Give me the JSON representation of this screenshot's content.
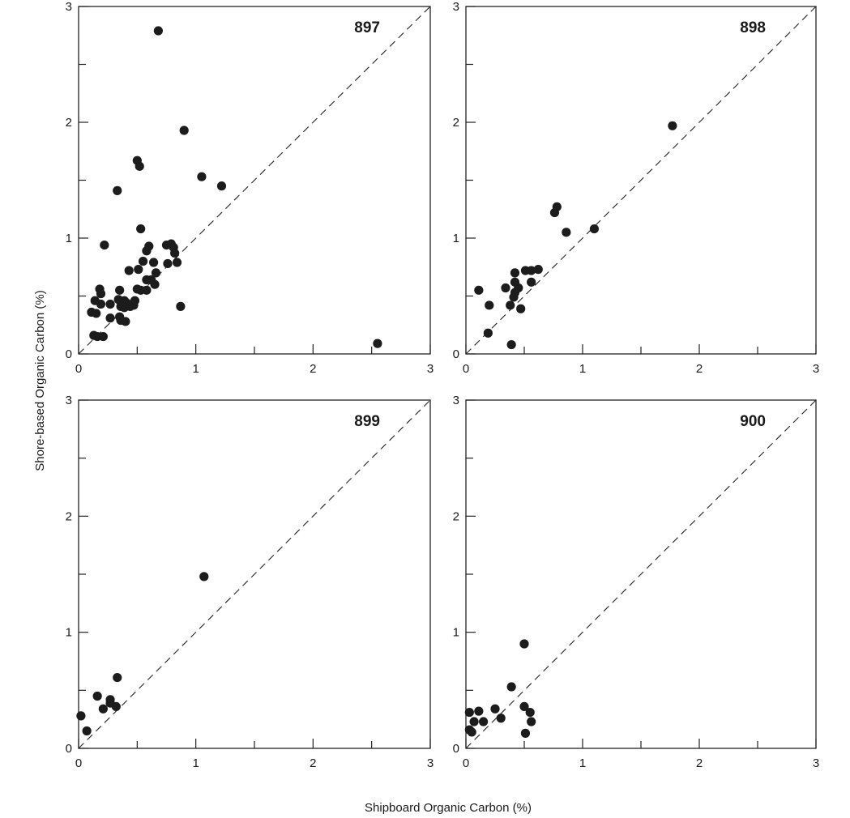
{
  "figure": {
    "xlabel": "Shipboard Organic Carbon (%)",
    "ylabel": "Shore-based Organic Carbon (%)"
  },
  "chart_data": [
    {
      "type": "scatter",
      "panel_label": "897",
      "xlim": [
        0,
        3
      ],
      "ylim": [
        0,
        3
      ],
      "x_ticks": [
        "0",
        "1",
        "2",
        "3"
      ],
      "y_ticks": [
        "0",
        "1",
        "2",
        "3"
      ],
      "reference_line": "1:1 dashed",
      "points": [
        [
          0.68,
          2.79
        ],
        [
          0.9,
          1.93
        ],
        [
          0.5,
          1.67
        ],
        [
          0.52,
          1.62
        ],
        [
          1.05,
          1.53
        ],
        [
          1.22,
          1.45
        ],
        [
          0.33,
          1.41
        ],
        [
          0.53,
          1.08
        ],
        [
          0.22,
          0.94
        ],
        [
          0.6,
          0.93
        ],
        [
          0.75,
          0.94
        ],
        [
          0.79,
          0.95
        ],
        [
          0.81,
          0.92
        ],
        [
          0.58,
          0.89
        ],
        [
          0.82,
          0.87
        ],
        [
          0.55,
          0.8
        ],
        [
          0.64,
          0.79
        ],
        [
          0.84,
          0.79
        ],
        [
          0.76,
          0.78
        ],
        [
          0.51,
          0.73
        ],
        [
          0.43,
          0.72
        ],
        [
          0.66,
          0.7
        ],
        [
          0.58,
          0.64
        ],
        [
          0.62,
          0.64
        ],
        [
          0.65,
          0.6
        ],
        [
          0.5,
          0.56
        ],
        [
          0.53,
          0.55
        ],
        [
          0.58,
          0.55
        ],
        [
          0.35,
          0.55
        ],
        [
          0.18,
          0.56
        ],
        [
          0.19,
          0.52
        ],
        [
          0.34,
          0.47
        ],
        [
          0.39,
          0.46
        ],
        [
          0.41,
          0.44
        ],
        [
          0.48,
          0.46
        ],
        [
          0.14,
          0.46
        ],
        [
          0.19,
          0.43
        ],
        [
          0.27,
          0.43
        ],
        [
          0.36,
          0.41
        ],
        [
          0.39,
          0.4
        ],
        [
          0.47,
          0.42
        ],
        [
          0.44,
          0.41
        ],
        [
          0.11,
          0.36
        ],
        [
          0.15,
          0.35
        ],
        [
          0.35,
          0.32
        ],
        [
          0.27,
          0.31
        ],
        [
          0.36,
          0.29
        ],
        [
          0.4,
          0.28
        ],
        [
          0.87,
          0.41
        ],
        [
          0.13,
          0.16
        ],
        [
          0.16,
          0.15
        ],
        [
          0.21,
          0.15
        ],
        [
          2.55,
          0.09
        ]
      ]
    },
    {
      "type": "scatter",
      "panel_label": "898",
      "xlim": [
        0,
        3
      ],
      "ylim": [
        0,
        3
      ],
      "x_ticks": [
        "0",
        "1",
        "2",
        "3"
      ],
      "y_ticks": [
        "0",
        "1",
        "2",
        "3"
      ],
      "reference_line": "1:1 dashed",
      "points": [
        [
          1.77,
          1.97
        ],
        [
          0.78,
          1.27
        ],
        [
          0.76,
          1.22
        ],
        [
          1.1,
          1.08
        ],
        [
          0.86,
          1.05
        ],
        [
          0.62,
          0.73
        ],
        [
          0.51,
          0.72
        ],
        [
          0.56,
          0.72
        ],
        [
          0.42,
          0.7
        ],
        [
          0.42,
          0.62
        ],
        [
          0.56,
          0.62
        ],
        [
          0.45,
          0.57
        ],
        [
          0.34,
          0.57
        ],
        [
          0.42,
          0.53
        ],
        [
          0.11,
          0.55
        ],
        [
          0.41,
          0.49
        ],
        [
          0.2,
          0.42
        ],
        [
          0.38,
          0.42
        ],
        [
          0.47,
          0.39
        ],
        [
          0.19,
          0.18
        ],
        [
          0.39,
          0.08
        ]
      ]
    },
    {
      "type": "scatter",
      "panel_label": "899",
      "xlim": [
        0,
        3
      ],
      "ylim": [
        0,
        3
      ],
      "x_ticks": [
        "0",
        "1",
        "2",
        "3"
      ],
      "y_ticks": [
        "0",
        "1",
        "2",
        "3"
      ],
      "reference_line": "1:1 dashed",
      "points": [
        [
          1.07,
          1.48
        ],
        [
          0.33,
          0.61
        ],
        [
          0.16,
          0.45
        ],
        [
          0.27,
          0.42
        ],
        [
          0.27,
          0.39
        ],
        [
          0.21,
          0.34
        ],
        [
          0.32,
          0.36
        ],
        [
          0.02,
          0.28
        ],
        [
          0.07,
          0.15
        ]
      ]
    },
    {
      "type": "scatter",
      "panel_label": "900",
      "xlim": [
        0,
        3
      ],
      "ylim": [
        0,
        3
      ],
      "x_ticks": [
        "0",
        "1",
        "2",
        "3"
      ],
      "y_ticks": [
        "0",
        "1",
        "2",
        "3"
      ],
      "reference_line": "1:1 dashed",
      "points": [
        [
          0.5,
          0.9
        ],
        [
          0.39,
          0.53
        ],
        [
          0.5,
          0.36
        ],
        [
          0.55,
          0.31
        ],
        [
          0.25,
          0.34
        ],
        [
          0.11,
          0.32
        ],
        [
          0.03,
          0.31
        ],
        [
          0.3,
          0.26
        ],
        [
          0.07,
          0.23
        ],
        [
          0.15,
          0.23
        ],
        [
          0.56,
          0.23
        ],
        [
          0.03,
          0.16
        ],
        [
          0.05,
          0.14
        ],
        [
          0.51,
          0.13
        ]
      ]
    }
  ]
}
